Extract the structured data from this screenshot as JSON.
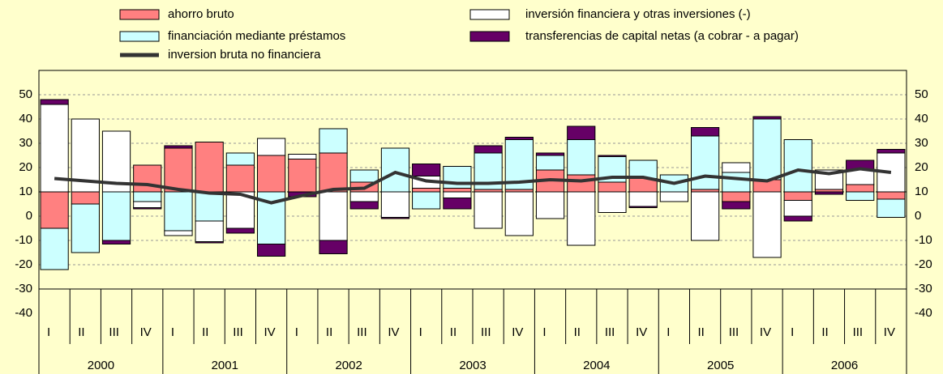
{
  "chart_data": {
    "type": "stacked-bar-line",
    "categories": [
      "I",
      "II",
      "III",
      "IV",
      "I",
      "II",
      "III",
      "IV",
      "I",
      "II",
      "III",
      "IV",
      "I",
      "II",
      "III",
      "IV",
      "I",
      "II",
      "III",
      "IV",
      "I",
      "II",
      "III",
      "IV",
      "I",
      "II",
      "III",
      "IV"
    ],
    "years": [
      "2000",
      "2001",
      "2002",
      "2003",
      "2004",
      "2005",
      "2006"
    ],
    "bar_base": 10,
    "series": [
      {
        "name": "ahorro bruto",
        "color": "#ff8080",
        "values": [
          -15,
          -5,
          0,
          11,
          18,
          20.5,
          11,
          15,
          13.5,
          16,
          4,
          0,
          1.5,
          1.5,
          1,
          1,
          9,
          7,
          4,
          5.5,
          0,
          1,
          -4,
          5,
          -3.5,
          1,
          3,
          -3
        ]
      },
      {
        "name": "financiación mediante préstamos",
        "color": "#ccffff",
        "values": [
          -17,
          -20,
          -20,
          -4,
          -16,
          -12,
          5,
          -21.5,
          0,
          10,
          5,
          18,
          -7,
          9,
          15,
          20.5,
          6,
          14.5,
          10.5,
          7.5,
          7,
          22,
          8,
          25,
          21.5,
          0,
          -3.5,
          -7.5
        ]
      },
      {
        "name": "inversión financiera y otras inversiones (-)",
        "color": "#ffffff",
        "values": [
          36,
          30,
          25,
          -2.5,
          -2,
          -8.5,
          -15,
          7,
          2,
          -20,
          -4,
          -10.5,
          5,
          -2.5,
          -15,
          -18,
          -11,
          -22,
          -8.5,
          -6,
          -4,
          -20,
          4,
          -27,
          -6.5,
          8,
          6,
          16
        ]
      },
      {
        "name": "transferencias de capital netas (a cobrar -  a pagar)",
        "color": "#660066",
        "values": [
          2,
          0,
          -1.5,
          -0.5,
          1,
          -0.5,
          -2,
          -5,
          -2,
          -5.5,
          -3,
          -0.5,
          5,
          -4.5,
          3,
          1,
          1,
          5.5,
          0.5,
          -0.5,
          0,
          3.5,
          -3,
          1,
          -2,
          -1,
          4,
          1.5
        ]
      }
    ],
    "line": {
      "name": "inversion bruta no financiera",
      "color": "#333333",
      "values": [
        15.5,
        14.5,
        13.5,
        13,
        11,
        9.5,
        9,
        5.5,
        8.5,
        11,
        11.5,
        18,
        14.5,
        13.5,
        13.5,
        14,
        15,
        14.5,
        16,
        16,
        13.5,
        16.5,
        15.5,
        14.5,
        19,
        17.5,
        19.5,
        18
      ]
    },
    "ylim": [
      -30,
      60
    ],
    "yticks": [
      -40,
      -30,
      -20,
      -10,
      0,
      10,
      20,
      30,
      40,
      50
    ],
    "y2lim": [
      -30,
      60
    ],
    "y2ticks": [
      -40,
      -30,
      -20,
      -10,
      0,
      10,
      20,
      30,
      40,
      50
    ],
    "grid": true
  }
}
